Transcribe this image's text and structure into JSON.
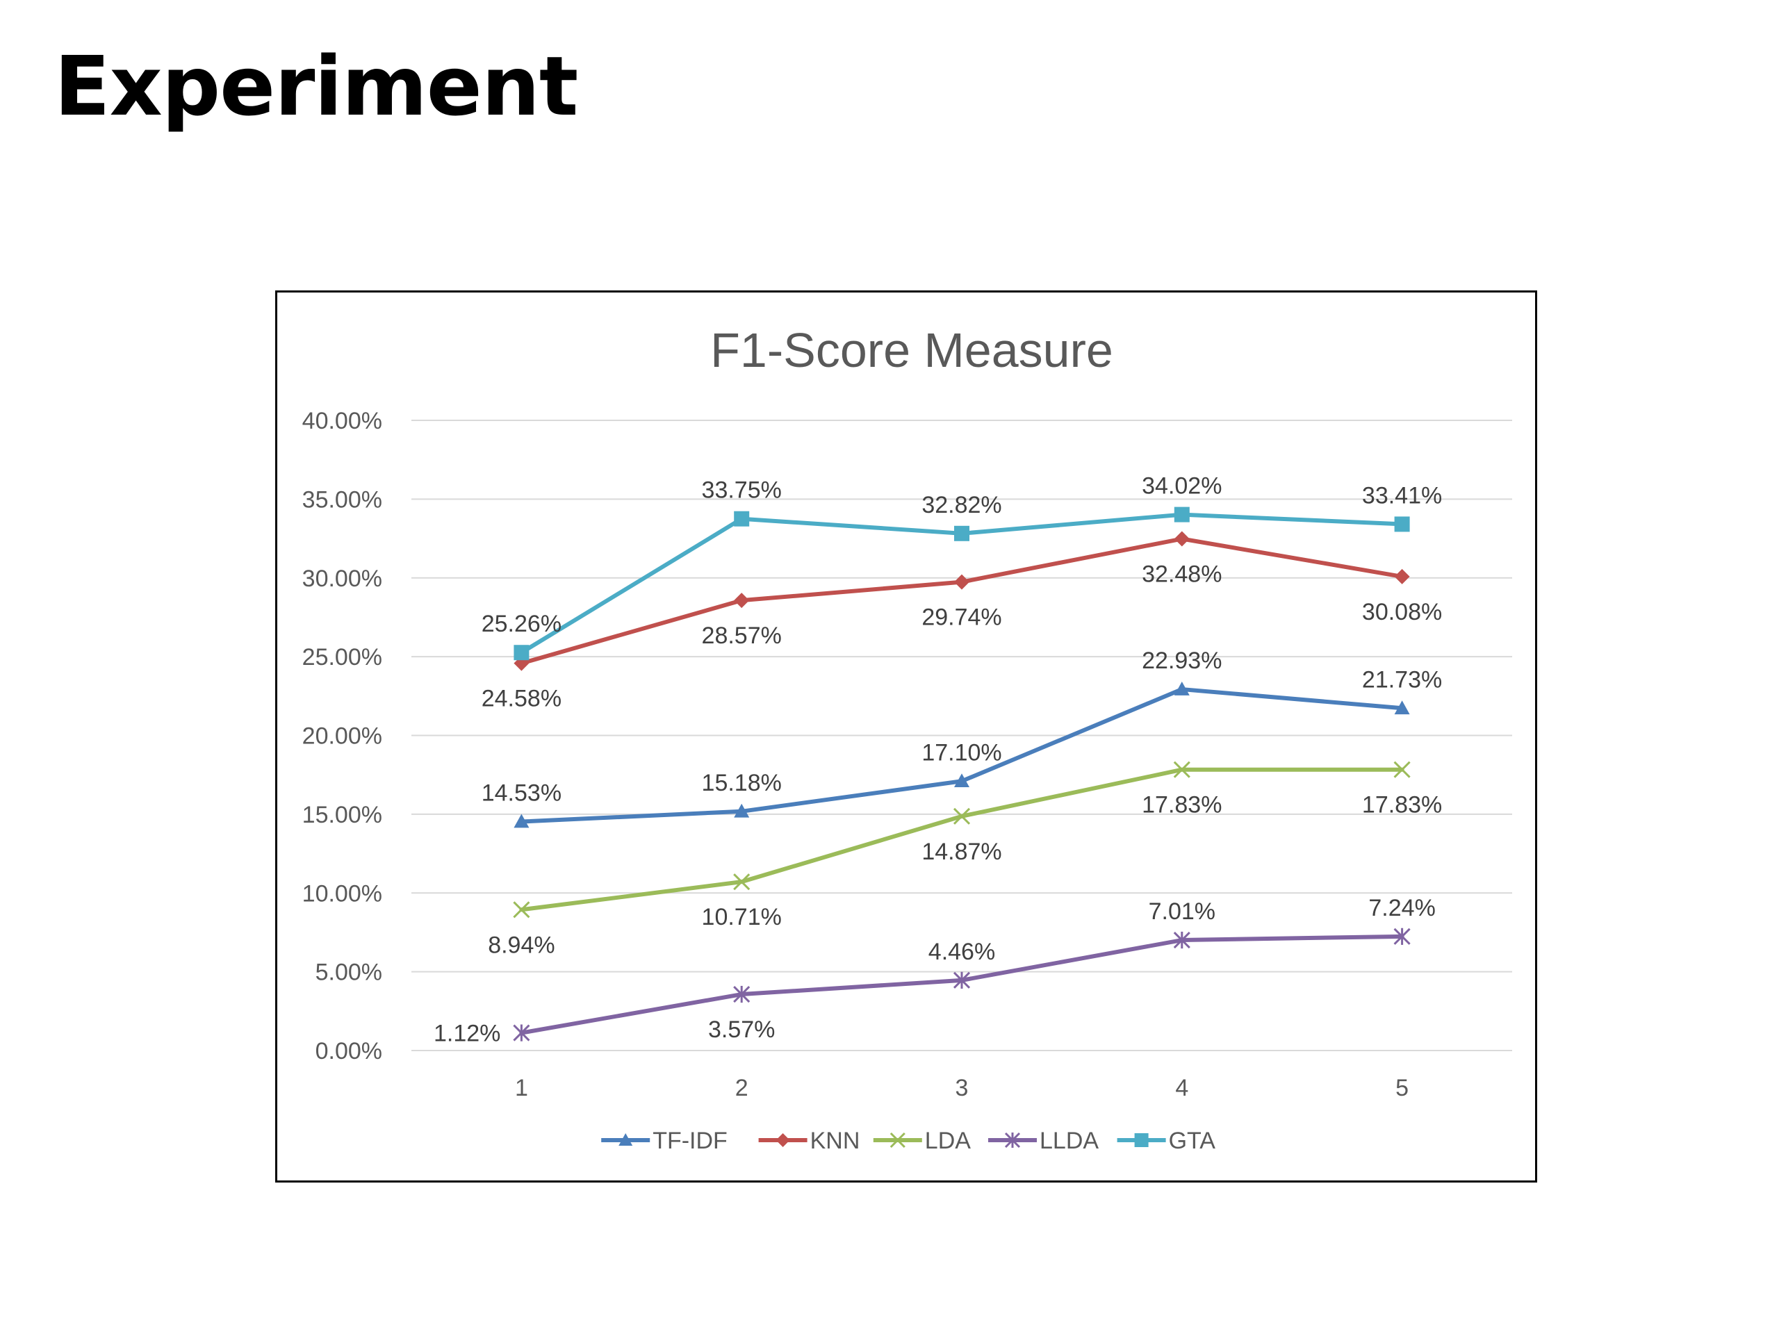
{
  "slide": {
    "title": "Experiment"
  },
  "chart_data": {
    "type": "line",
    "title": "F1-Score Measure",
    "xlabel": "",
    "ylabel": "",
    "categories": [
      "1",
      "2",
      "3",
      "4",
      "5"
    ],
    "ylim": [
      0,
      40
    ],
    "y_ticks": [
      0,
      5,
      10,
      15,
      20,
      25,
      30,
      35,
      40
    ],
    "y_tick_labels": [
      "0.00%",
      "5.00%",
      "10.00%",
      "15.00%",
      "20.00%",
      "25.00%",
      "30.00%",
      "35.00%",
      "40.00%"
    ],
    "grid": true,
    "legend_position": "bottom",
    "series": [
      {
        "name": "TF-IDF",
        "color": "#4a7ebb",
        "marker": "triangle",
        "values": [
          14.53,
          15.18,
          17.1,
          22.93,
          21.73
        ],
        "labels": [
          "14.53%",
          "15.18%",
          "17.10%",
          "22.93%",
          "21.73%"
        ],
        "label_positions": [
          "above",
          "above",
          "above",
          "above",
          "above"
        ]
      },
      {
        "name": "KNN",
        "color": "#c0504d",
        "marker": "diamond",
        "values": [
          24.58,
          28.57,
          29.74,
          32.48,
          30.08
        ],
        "labels": [
          "24.58%",
          "28.57%",
          "29.74%",
          "32.48%",
          "30.08%"
        ],
        "label_positions": [
          "below",
          "below",
          "below",
          "below",
          "below"
        ]
      },
      {
        "name": "LDA",
        "color": "#9bbb59",
        "marker": "x",
        "values": [
          8.94,
          10.71,
          14.87,
          17.83,
          17.83
        ],
        "labels": [
          "8.94%",
          "10.71%",
          "14.87%",
          "17.83%",
          "17.83%"
        ],
        "label_positions": [
          "below",
          "below",
          "below",
          "below",
          "below"
        ]
      },
      {
        "name": "LLDA",
        "color": "#8064a2",
        "marker": "star",
        "values": [
          1.12,
          3.57,
          4.46,
          7.01,
          7.24
        ],
        "labels": [
          "1.12%",
          "3.57%",
          "4.46%",
          "7.01%",
          "7.24%"
        ],
        "label_positions": [
          "left",
          "below",
          "above",
          "above",
          "above"
        ]
      },
      {
        "name": "GTA",
        "color": "#4bacc6",
        "marker": "square",
        "values": [
          25.26,
          33.75,
          32.82,
          34.02,
          33.41
        ],
        "labels": [
          "25.26%",
          "33.75%",
          "32.82%",
          "34.02%",
          "33.41%"
        ],
        "label_positions": [
          "above",
          "above",
          "above",
          "above",
          "above"
        ]
      }
    ]
  }
}
